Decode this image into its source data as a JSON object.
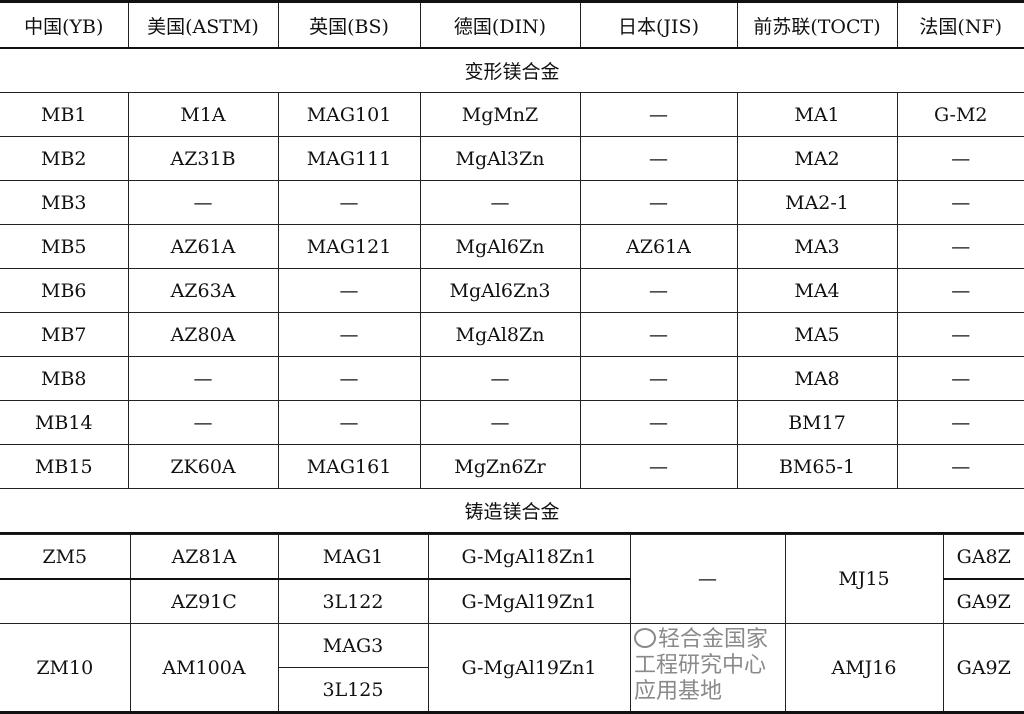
{
  "headers": [
    "中国(YB)",
    "美国(ASTM)",
    "英国(BS)",
    "德国(DIN)",
    "日本(JIS)",
    "前苏联(TOCT)",
    "法国(NF)"
  ],
  "sections": {
    "wrought": "变形镁合金",
    "cast": "铸造镁合金"
  },
  "wrought_rows": [
    [
      "MB1",
      "M1A",
      "MAG101",
      "MgMnZ",
      "—",
      "MA1",
      "G-M2"
    ],
    [
      "MB2",
      "AZ31B",
      "MAG111",
      "MgAl3Zn",
      "—",
      "MA2",
      "—"
    ],
    [
      "MB3",
      "—",
      "—",
      "—",
      "—",
      "MA2-1",
      "—"
    ],
    [
      "MB5",
      "AZ61A",
      "MAG121",
      "MgAl6Zn",
      "AZ61A",
      "MA3",
      "—"
    ],
    [
      "MB6",
      "AZ63A",
      "—",
      "MgAl6Zn3",
      "—",
      "MA4",
      "—"
    ],
    [
      "MB7",
      "AZ80A",
      "—",
      "MgAl8Zn",
      "—",
      "MA5",
      "—"
    ],
    [
      "MB8",
      "—",
      "—",
      "—",
      "—",
      "MA8",
      "—"
    ],
    [
      "MB14",
      "—",
      "—",
      "—",
      "—",
      "BM17",
      "—"
    ],
    [
      "MB15",
      "ZK60A",
      "MAG161",
      "MgZn6Zr",
      "—",
      "BM65-1",
      "—"
    ]
  ],
  "cast": {
    "zm5": "ZM5",
    "zm10": "ZM10",
    "astm": [
      "AZ81A",
      "AZ91C",
      "AM100A"
    ],
    "bs": [
      "MAG1",
      "3L122",
      "MAG3",
      "3L125"
    ],
    "din": [
      "G-MgAl18Zn1",
      "G-MgAl19Zn1",
      "G-MgAl19Zn1"
    ],
    "jis": [
      "—"
    ],
    "toct": [
      "MJ15",
      "AMJ16"
    ],
    "nf": [
      "GA8Z",
      "GA9Z",
      "GA9Z"
    ]
  },
  "watermark": "轻合金国家工程研究中心应用基地"
}
